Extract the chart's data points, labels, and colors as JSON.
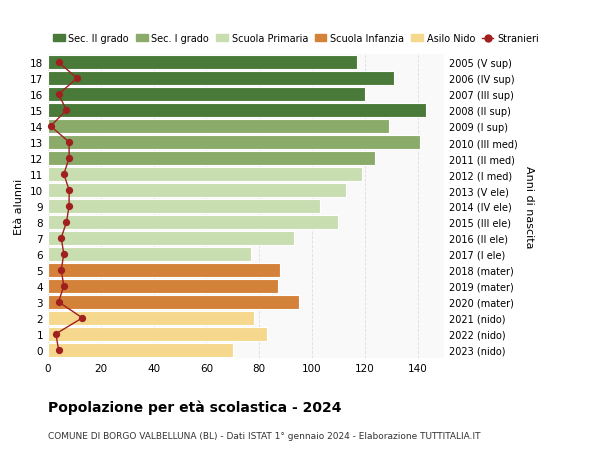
{
  "ages": [
    0,
    1,
    2,
    3,
    4,
    5,
    6,
    7,
    8,
    9,
    10,
    11,
    12,
    13,
    14,
    15,
    16,
    17,
    18
  ],
  "bar_values": [
    70,
    83,
    78,
    95,
    87,
    88,
    77,
    93,
    110,
    103,
    113,
    119,
    124,
    141,
    129,
    143,
    120,
    131,
    117
  ],
  "bar_colors": [
    "#f5d88e",
    "#f5d88e",
    "#f5d88e",
    "#d4823a",
    "#d4823a",
    "#d4823a",
    "#c8ddb0",
    "#c8ddb0",
    "#c8ddb0",
    "#c8ddb0",
    "#c8ddb0",
    "#c8ddb0",
    "#8aab6a",
    "#8aab6a",
    "#8aab6a",
    "#4a7a3a",
    "#4a7a3a",
    "#4a7a3a",
    "#4a7a3a"
  ],
  "stranieri_values": [
    4,
    3,
    13,
    4,
    6,
    5,
    6,
    5,
    7,
    8,
    8,
    6,
    8,
    8,
    1,
    7,
    4,
    11,
    4
  ],
  "right_labels": [
    "2023 (nido)",
    "2022 (nido)",
    "2021 (nido)",
    "2020 (mater)",
    "2019 (mater)",
    "2018 (mater)",
    "2017 (I ele)",
    "2016 (II ele)",
    "2015 (III ele)",
    "2014 (IV ele)",
    "2013 (V ele)",
    "2012 (I med)",
    "2011 (II med)",
    "2010 (III med)",
    "2009 (I sup)",
    "2008 (II sup)",
    "2007 (III sup)",
    "2006 (IV sup)",
    "2005 (V sup)"
  ],
  "legend_labels": [
    "Sec. II grado",
    "Sec. I grado",
    "Scuola Primaria",
    "Scuola Infanzia",
    "Asilo Nido",
    "Stranieri"
  ],
  "legend_colors": [
    "#4a7a3a",
    "#8aab6a",
    "#c8ddb0",
    "#d4823a",
    "#f5d88e",
    "#a02020"
  ],
  "ylabel": "Età alunni",
  "right_ylabel": "Anni di nascita",
  "title": "Popolazione per età scolastica - 2024",
  "subtitle": "COMUNE DI BORGO VALBELLUNA (BL) - Dati ISTAT 1° gennaio 2024 - Elaborazione TUTTITALIA.IT",
  "xlim": [
    0,
    150
  ],
  "xticks": [
    0,
    20,
    40,
    60,
    80,
    100,
    120,
    140
  ],
  "background_color": "#ffffff",
  "plot_bg_color": "#f9f9f9",
  "grid_color": "#dddddd"
}
